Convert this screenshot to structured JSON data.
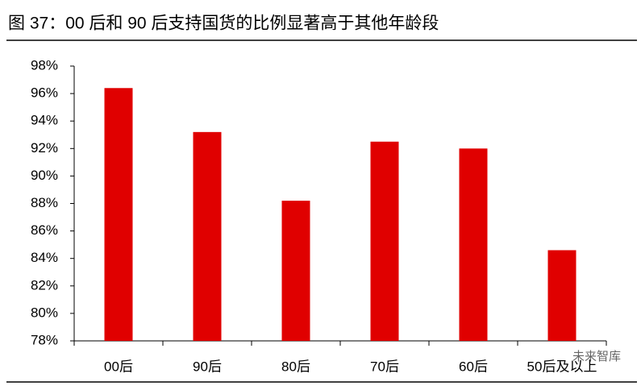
{
  "chart_data": {
    "type": "bar",
    "title": "图 37：00 后和 90 后支持国货的比例显著高于其他年龄段",
    "categories": [
      "00后",
      "90后",
      "80后",
      "70后",
      "60后",
      "50后及以上"
    ],
    "values": [
      96.4,
      93.2,
      88.2,
      92.5,
      92.0,
      84.6
    ],
    "color": "#e00000",
    "ylim": [
      78,
      98
    ],
    "yticks": [
      {
        "value": 78,
        "label": "78%"
      },
      {
        "value": 80,
        "label": "80%"
      },
      {
        "value": 82,
        "label": "82%"
      },
      {
        "value": 84,
        "label": "84%"
      },
      {
        "value": 86,
        "label": "86%"
      },
      {
        "value": 88,
        "label": "88%"
      },
      {
        "value": 90,
        "label": "90%"
      },
      {
        "value": 92,
        "label": "92%"
      },
      {
        "value": 94,
        "label": "94%"
      },
      {
        "value": 96,
        "label": "96%"
      },
      {
        "value": 98,
        "label": "98%"
      }
    ],
    "grid": false,
    "watermark": "未来智库"
  }
}
